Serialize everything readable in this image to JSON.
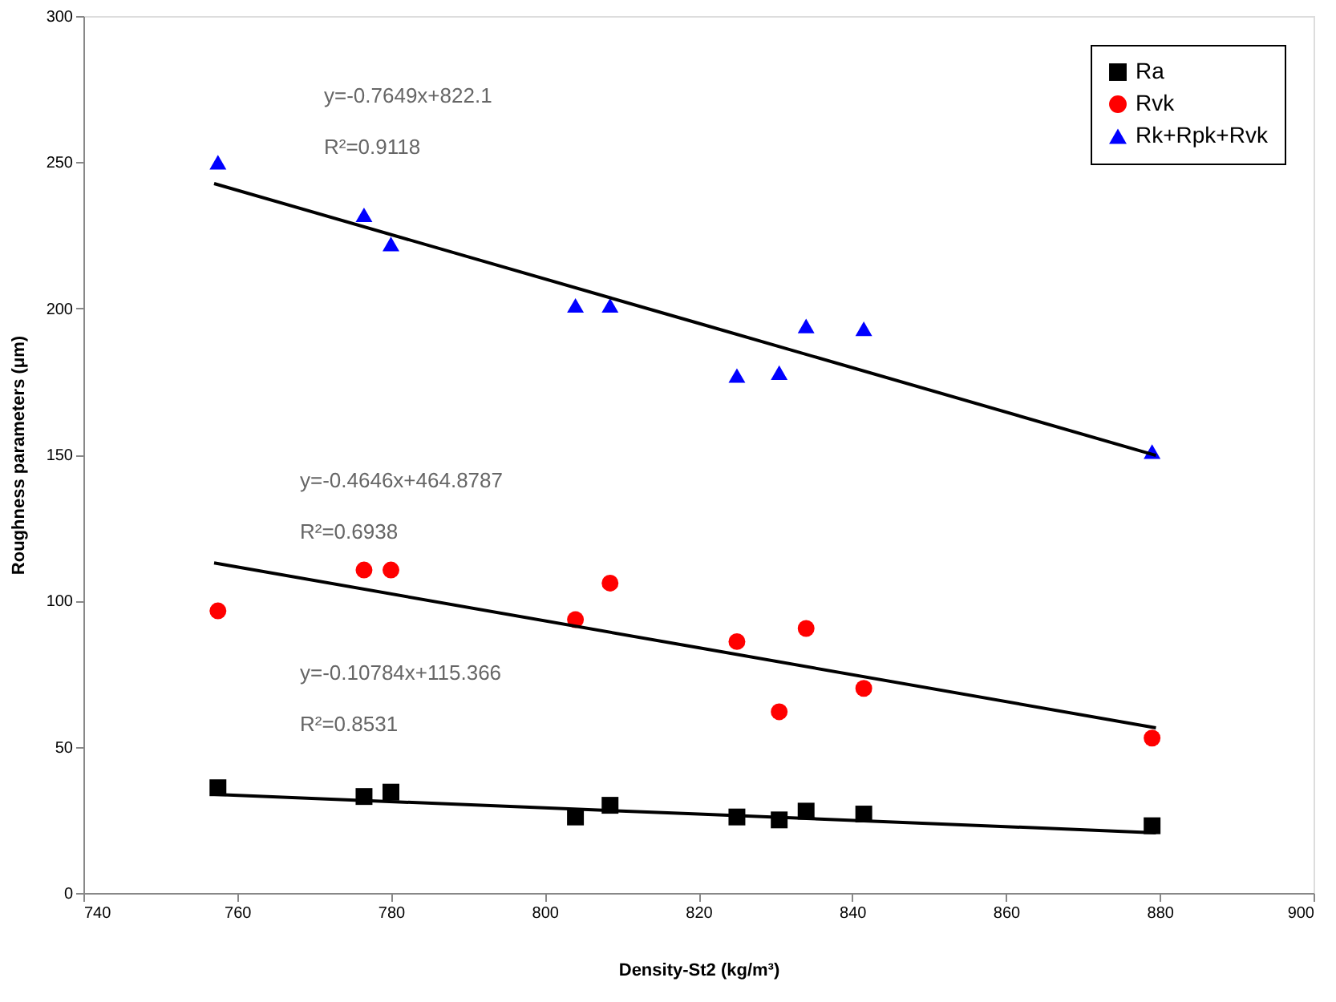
{
  "chart_data": {
    "type": "scatter",
    "xlabel": "Density-St2 (kg/m³)",
    "ylabel": "Roughness parameters (μm)",
    "x": [
      757.5,
      776.5,
      780,
      804,
      808.5,
      825,
      830.5,
      834,
      841.5,
      879
    ],
    "xlim": [
      740,
      900
    ],
    "xticks": [
      740,
      760,
      780,
      800,
      820,
      840,
      860,
      880,
      900
    ],
    "ylim": [
      0,
      300
    ],
    "yticks": [
      0,
      50,
      100,
      150,
      200,
      250,
      300
    ],
    "grid": false,
    "legend": "top right",
    "series": [
      {
        "name": "Ra",
        "color": "#000000",
        "marker": "square",
        "values": [
          36,
          33,
          34.5,
          26,
          30,
          26,
          25,
          28,
          27,
          23
        ]
      },
      {
        "name": "Rvk",
        "color": "#ff0000",
        "marker": "circle",
        "values": [
          96.5,
          110.5,
          110.5,
          93.5,
          106,
          86,
          62,
          90.5,
          70,
          53
        ]
      },
      {
        "name": "Rk+Rpk+Rvk",
        "color": "#0000ff",
        "marker": "triangle",
        "values": [
          250,
          232,
          222,
          201,
          201,
          177,
          178,
          194,
          193,
          151
        ]
      },
      {
        "type": "line",
        "color": "#000000",
        "marker": "none",
        "line_style": "solid",
        "x": [
          757,
          820,
          879.5
        ],
        "values": [
          33.7,
          27,
          20.6
        ]
      },
      {
        "type": "line",
        "color": "#000000",
        "marker": "none",
        "line_style": "solid",
        "x": [
          757,
          820,
          879.5
        ],
        "values": [
          112.9,
          83.9,
          56.5
        ]
      },
      {
        "type": "line",
        "color": "#000000",
        "marker": "none",
        "line_style": "solid",
        "x": [
          757,
          820,
          879.5
        ],
        "values": [
          242.7,
          194.9,
          149.7
        ]
      }
    ],
    "annotations": [
      "y=-0.7649x+822.1",
      "R²=0.9118",
      "y=-0.4646x+464.8787",
      "R²=0.6938",
      "y=-0.10784x+115.366",
      "R²=0.8531"
    ]
  }
}
